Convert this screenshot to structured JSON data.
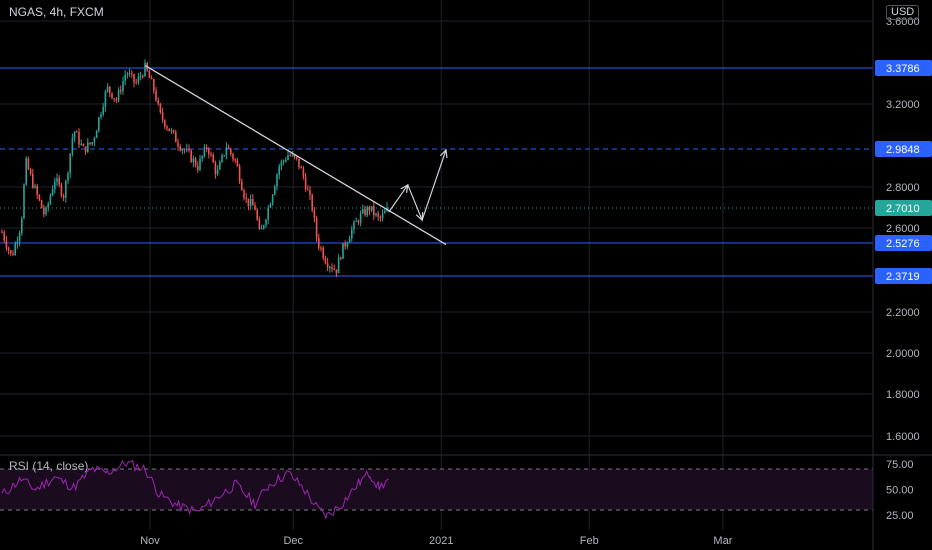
{
  "header": {
    "symbol": "NGAS, 4h, FXCM",
    "currency": "USD"
  },
  "rsi": {
    "label": "RSI (14, close)",
    "ticks": [
      "75.00",
      "50.00",
      "25.00"
    ],
    "upper": 70,
    "lower": 30
  },
  "colors": {
    "up": "#26a69a",
    "down": "#ef5350",
    "level": "#2962ff",
    "rsi": "#9c27b0",
    "grid": "#1e222d"
  },
  "chart_data": {
    "type": "candlestick",
    "y_ticks": [
      3.6,
      3.2,
      2.8,
      2.6,
      2.2,
      2.0,
      1.8,
      1.6
    ],
    "y_tick_labels": [
      "3.6000",
      "3.2000",
      "2.8000",
      "2.6000",
      "2.2000",
      "2.0000",
      "1.8000",
      "1.6000"
    ],
    "x_ticks": [
      {
        "label": "Nov",
        "date": "2020-11-01"
      },
      {
        "label": "Dec",
        "date": "2020-12-01"
      },
      {
        "label": "2021",
        "date": "2021-01-01"
      },
      {
        "label": "Feb",
        "date": "2021-02-01"
      },
      {
        "label": "Mar",
        "date": "2021-03-01"
      }
    ],
    "levels": [
      {
        "label": "3.3786",
        "value": 3.3786,
        "style": "solid"
      },
      {
        "label": "2.9848",
        "value": 2.9848,
        "style": "dashed"
      },
      {
        "label": "2.5276",
        "value": 2.5276,
        "style": "solid"
      },
      {
        "label": "2.3719",
        "value": 2.3719,
        "style": "solid"
      }
    ],
    "last_price": {
      "label": "2.7010",
      "value": 2.701
    },
    "trendline": [
      [
        "2020-10-31",
        3.39
      ],
      [
        "2021-01-02",
        2.52
      ]
    ],
    "projection": [
      [
        "2020-12-21",
        2.68
      ],
      [
        "2020-12-25",
        2.81
      ],
      [
        "2020-12-28",
        2.64
      ],
      [
        "2021-01-02",
        2.98
      ]
    ],
    "price_path": [
      [
        "2020-10-01",
        2.58
      ],
      [
        "2020-10-03",
        2.46
      ],
      [
        "2020-10-05",
        2.62
      ],
      [
        "2020-10-06",
        2.92
      ],
      [
        "2020-10-08",
        2.78
      ],
      [
        "2020-10-10",
        2.66
      ],
      [
        "2020-10-12",
        2.84
      ],
      [
        "2020-10-14",
        2.76
      ],
      [
        "2020-10-16",
        3.08
      ],
      [
        "2020-10-18",
        2.98
      ],
      [
        "2020-10-20",
        3.02
      ],
      [
        "2020-10-23",
        3.28
      ],
      [
        "2020-10-25",
        3.22
      ],
      [
        "2020-10-27",
        3.36
      ],
      [
        "2020-10-29",
        3.3
      ],
      [
        "2020-10-31",
        3.38
      ],
      [
        "2020-11-02",
        3.26
      ],
      [
        "2020-11-03",
        3.15
      ],
      [
        "2020-11-05",
        3.08
      ],
      [
        "2020-11-07",
        3.01
      ],
      [
        "2020-11-09",
        2.96
      ],
      [
        "2020-11-11",
        2.9
      ],
      [
        "2020-11-13",
        3.0
      ],
      [
        "2020-11-15",
        2.86
      ],
      [
        "2020-11-17",
        3.0
      ],
      [
        "2020-11-19",
        2.92
      ],
      [
        "2020-11-21",
        2.74
      ],
      [
        "2020-11-23",
        2.7
      ],
      [
        "2020-11-24",
        2.56
      ],
      [
        "2020-11-26",
        2.72
      ],
      [
        "2020-11-28",
        2.9
      ],
      [
        "2020-11-30",
        2.96
      ],
      [
        "2020-12-02",
        2.92
      ],
      [
        "2020-12-03",
        2.86
      ],
      [
        "2020-12-05",
        2.7
      ],
      [
        "2020-12-06",
        2.54
      ],
      [
        "2020-12-08",
        2.44
      ],
      [
        "2020-12-10",
        2.4
      ],
      [
        "2020-12-11",
        2.48
      ],
      [
        "2020-12-13",
        2.58
      ],
      [
        "2020-12-15",
        2.66
      ],
      [
        "2020-12-17",
        2.7
      ],
      [
        "2020-12-19",
        2.64
      ],
      [
        "2020-12-21",
        2.7
      ]
    ],
    "rsi_path": [
      [
        "2020-10-01",
        45
      ],
      [
        "2020-10-05",
        60
      ],
      [
        "2020-10-08",
        50
      ],
      [
        "2020-10-12",
        62
      ],
      [
        "2020-10-16",
        52
      ],
      [
        "2020-10-20",
        70
      ],
      [
        "2020-10-23",
        66
      ],
      [
        "2020-10-27",
        76
      ],
      [
        "2020-10-31",
        70
      ],
      [
        "2020-11-03",
        45
      ],
      [
        "2020-11-07",
        34
      ],
      [
        "2020-11-11",
        28
      ],
      [
        "2020-11-15",
        42
      ],
      [
        "2020-11-19",
        55
      ],
      [
        "2020-11-23",
        36
      ],
      [
        "2020-11-26",
        55
      ],
      [
        "2020-11-30",
        66
      ],
      [
        "2020-12-03",
        52
      ],
      [
        "2020-12-06",
        32
      ],
      [
        "2020-12-08",
        24
      ],
      [
        "2020-12-11",
        35
      ],
      [
        "2020-12-15",
        58
      ],
      [
        "2020-12-17",
        66
      ],
      [
        "2020-12-19",
        52
      ],
      [
        "2020-12-21",
        60
      ]
    ]
  }
}
